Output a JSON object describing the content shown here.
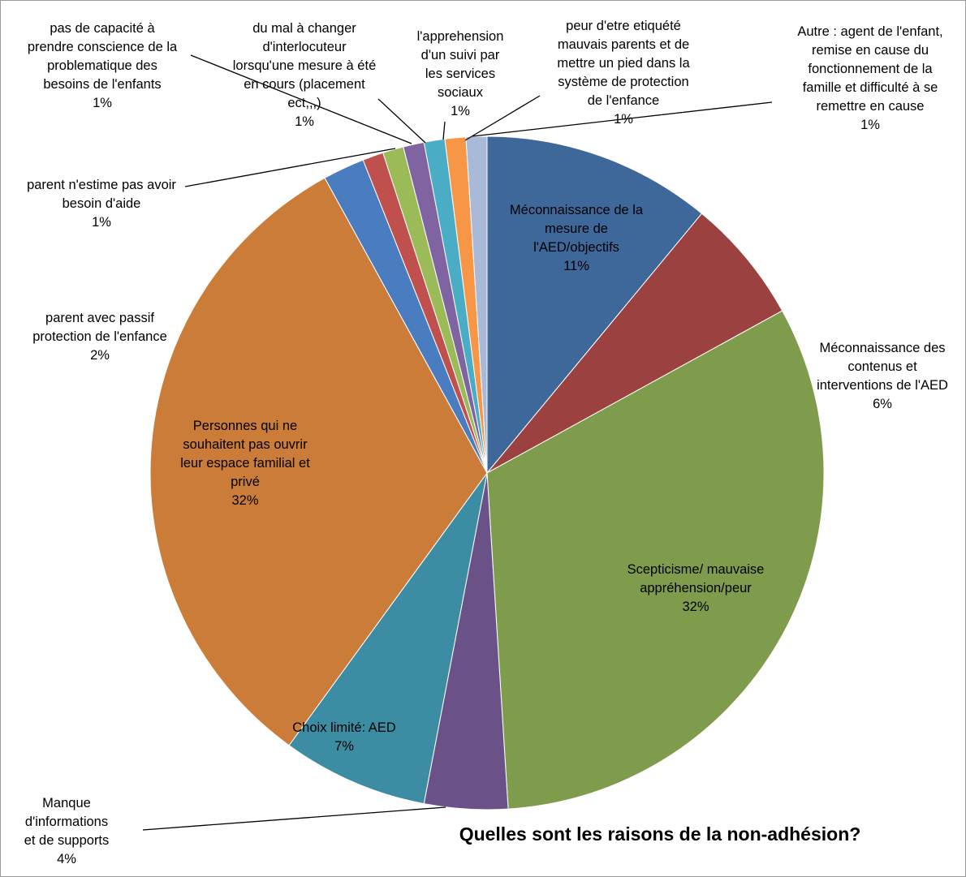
{
  "chart_data": {
    "type": "pie",
    "title": "Quelles sont les raisons de la non-adhésion?",
    "slices": [
      {
        "name": "Méconnaissance de la mesure de l'AED/objectifs",
        "value": 11,
        "label_text": "11%",
        "color": "#3F689A"
      },
      {
        "name": "Méconnaissance des contenus et interventions de l'AED",
        "value": 6,
        "label_text": "6%",
        "color": "#9B4240"
      },
      {
        "name": "Scepticisme/ mauvaise appréhension/peur",
        "value": 32,
        "label_text": "32%",
        "color": "#7F9B4C"
      },
      {
        "name": "Manque d'informations et de supports",
        "value": 4,
        "label_text": "4%",
        "color": "#6A5289"
      },
      {
        "name": "Choix limité: AED",
        "value": 7,
        "label_text": "7%",
        "color": "#3C8DA3"
      },
      {
        "name": "Personnes qui ne souhaitent pas ouvrir leur espace familial et privé",
        "value": 32,
        "label_text": "32%",
        "color": "#CB7C39"
      },
      {
        "name": "parent avec passif protection de l'enfance",
        "value": 2,
        "label_text": "2%",
        "color": "#4A7DBF"
      },
      {
        "name": "parent n'estime pas avoir besoin d'aide",
        "value": 1,
        "label_text": "1%",
        "color": "#C0504D"
      },
      {
        "name": "pas de capacité à prendre conscience de la problematique des besoins de l'enfants",
        "value": 1,
        "label_text": "1%",
        "color": "#9BBB59"
      },
      {
        "name": "du mal à changer d'interlocuteur lorsqu'une mesure à été en cours (placement ect,,,)",
        "value": 1,
        "label_text": "1%",
        "color": "#8064A2"
      },
      {
        "name": "l'apprehension d'un suivi par les services sociaux",
        "value": 1,
        "label_text": "1%",
        "color": "#4BACC6"
      },
      {
        "name": "peur d'etre etiquété mauvais parents et de mettre un pied dans la système de protection de l'enfance",
        "value": 1,
        "label_text": "1%",
        "color": "#F79646"
      },
      {
        "name": "Autre : agent de l'enfant, remise en cause du fonctionnement de la famille et difficulté à se remettre en cause",
        "value": 1,
        "label_text": "1%",
        "color": "#A9BAD9"
      }
    ],
    "label_lines": [
      [
        "Méconnaissance de la",
        "mesure de",
        "l'AED/objectifs",
        "11%"
      ],
      [
        "Méconnaissance des",
        "contenus et",
        "interventions de l'AED",
        "6%"
      ],
      [
        "Scepticisme/ mauvaise",
        "appréhension/peur",
        "32%"
      ],
      [
        "Manque",
        "d'informations",
        "et de supports",
        "4%"
      ],
      [
        "Choix limité: AED",
        "7%"
      ],
      [
        "Personnes qui ne",
        "souhaitent pas ouvrir",
        "leur espace familial et",
        "privé",
        "32%"
      ],
      [
        "parent avec passif",
        "protection de l'enfance",
        "2%"
      ],
      [
        "parent n'estime pas avoir",
        "besoin d'aide",
        "1%"
      ],
      [
        "pas de capacité à",
        "prendre conscience de la",
        "problematique des",
        "besoins de l'enfants",
        "1%"
      ],
      [
        "du mal à changer",
        "d'interlocuteur",
        "lorsqu'une mesure à été",
        "en cours (placement",
        "ect,,,)",
        "1%"
      ],
      [
        "l'apprehension",
        "d'un suivi par",
        "les services",
        "sociaux",
        "1%"
      ],
      [
        "peur d'etre etiquété",
        "mauvais parents et de",
        "mettre un pied dans la",
        "système de protection",
        "de l'enfance",
        "1%"
      ],
      [
        "Autre : agent de l'enfant,",
        "remise en cause du",
        "fonctionnement de la",
        "famille et difficulté à se",
        "remettre en cause",
        "1%"
      ]
    ],
    "start_angle_deg": 0,
    "direction": "clockwise",
    "legend": "none",
    "data_labels": "category name and percentage"
  }
}
